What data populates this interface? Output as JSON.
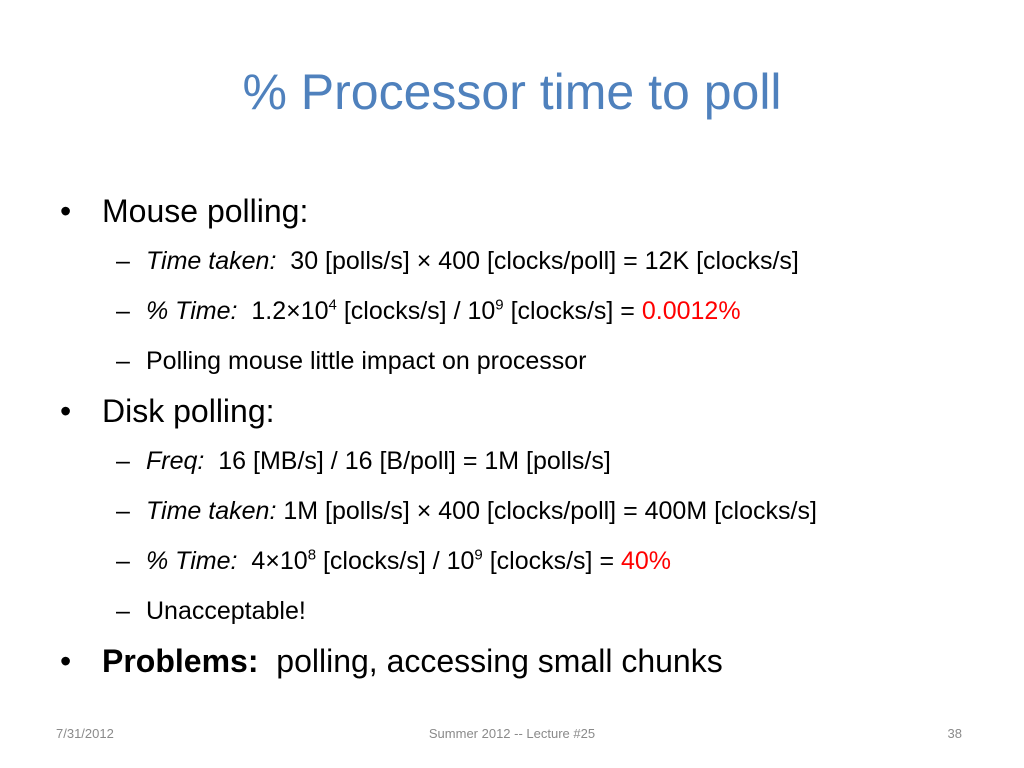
{
  "slide": {
    "title": "% Processor time to poll",
    "bullets": {
      "mouse": {
        "label": "Mouse polling:",
        "time_taken": {
          "label": "Time taken:",
          "text": "30 [polls/s] × 400 [clocks/poll] = 12K [clocks/s]"
        },
        "pct_time": {
          "label": "% Time:",
          "base1": "1.2×10",
          "exp1": "4",
          "mid": " [clocks/s] / 10",
          "exp2": "9",
          "tail": " [clocks/s] = ",
          "result": "0.0012%"
        },
        "note": "Polling mouse little impact on processor"
      },
      "disk": {
        "label": "Disk polling:",
        "freq": {
          "label": "Freq:",
          "text": "16 [MB/s] / 16 [B/poll] = 1M [polls/s]"
        },
        "time_taken": {
          "label": "Time taken:",
          "text": "1M [polls/s] × 400 [clocks/poll] = 400M [clocks/s]"
        },
        "pct_time": {
          "label": "% Time:",
          "base1": "4×10",
          "exp1": "8",
          "mid": " [clocks/s] / 10",
          "exp2": "9",
          "tail": " [clocks/s] = ",
          "result": "40%"
        },
        "note": "Unacceptable!"
      },
      "problems": {
        "label": "Problems:",
        "text": "polling, accessing small chunks"
      }
    },
    "symbols": {
      "bullet": "•",
      "dash": "–"
    }
  },
  "footer": {
    "date": "7/31/2012",
    "center": "Summer 2012 -- Lecture #25",
    "page": "38"
  },
  "colors": {
    "title": "#4f81bd",
    "highlight": "#ff0000",
    "footer": "#8a8a8a"
  }
}
